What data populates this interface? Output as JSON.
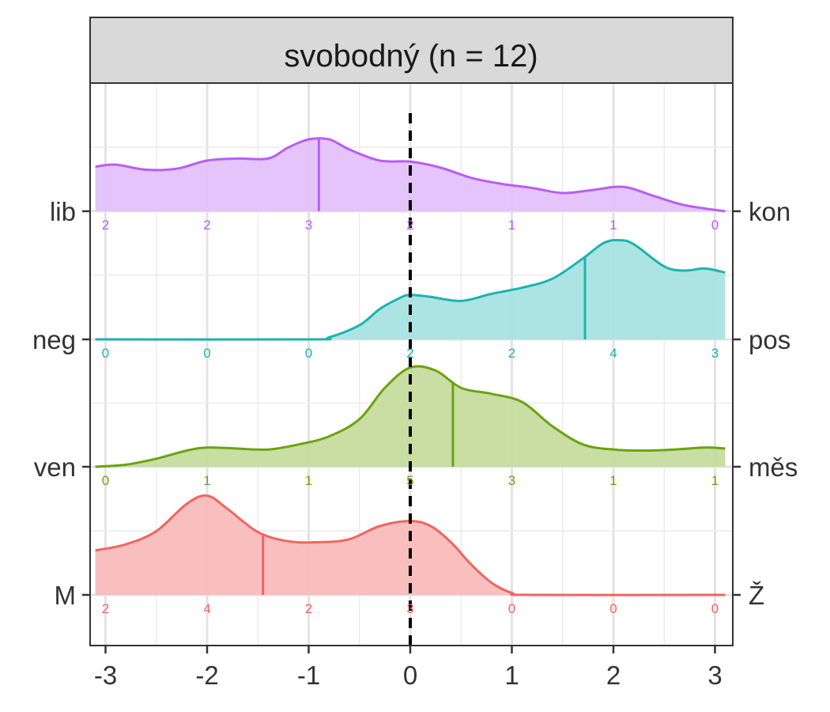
{
  "chart_data": {
    "type": "area",
    "title": "svobodný (n = 12)",
    "xlim": [
      -3.15,
      3.15
    ],
    "x_ticks": [
      -3,
      -2,
      -1,
      0,
      1,
      2,
      3
    ],
    "x_tick_labels": [
      "-3",
      "-2",
      "-1",
      "0",
      "1",
      "2",
      "3"
    ],
    "reference_line_x": 0,
    "grid": true,
    "count_positions": [
      -3,
      -2,
      -1,
      0,
      1,
      2,
      3
    ],
    "series": [
      {
        "left_label": "M",
        "right_label": "Ž",
        "color": "#F2645E",
        "fill": "#F8BABA",
        "mean": -1.45,
        "counts": [
          2,
          4,
          2,
          3,
          0,
          0,
          0
        ],
        "peak_height": 1.0,
        "density": [
          [
            -3.1,
            0.44
          ],
          [
            -2.8,
            0.5
          ],
          [
            -2.5,
            0.63
          ],
          [
            -2.2,
            0.9
          ],
          [
            -2.0,
            0.98
          ],
          [
            -1.8,
            0.85
          ],
          [
            -1.5,
            0.62
          ],
          [
            -1.2,
            0.53
          ],
          [
            -0.9,
            0.52
          ],
          [
            -0.6,
            0.55
          ],
          [
            -0.3,
            0.68
          ],
          [
            0.0,
            0.73
          ],
          [
            0.2,
            0.68
          ],
          [
            0.4,
            0.52
          ],
          [
            0.6,
            0.3
          ],
          [
            0.8,
            0.12
          ],
          [
            1.0,
            0.02
          ],
          [
            1.2,
            0.0
          ],
          [
            3.1,
            0.0
          ]
        ]
      },
      {
        "left_label": "ven",
        "right_label": "měs",
        "color": "#6AA40E",
        "fill": "#C3DB9B",
        "mean": 0.42,
        "counts": [
          0,
          1,
          1,
          5,
          3,
          1,
          1
        ],
        "peak_height": 1.0,
        "density": [
          [
            -3.1,
            0.0
          ],
          [
            -2.8,
            0.02
          ],
          [
            -2.5,
            0.08
          ],
          [
            -2.2,
            0.16
          ],
          [
            -2.0,
            0.19
          ],
          [
            -1.7,
            0.18
          ],
          [
            -1.4,
            0.17
          ],
          [
            -1.1,
            0.22
          ],
          [
            -0.8,
            0.3
          ],
          [
            -0.5,
            0.47
          ],
          [
            -0.25,
            0.78
          ],
          [
            0.0,
            0.98
          ],
          [
            0.25,
            0.95
          ],
          [
            0.5,
            0.78
          ],
          [
            0.8,
            0.72
          ],
          [
            1.1,
            0.64
          ],
          [
            1.4,
            0.4
          ],
          [
            1.7,
            0.22
          ],
          [
            2.0,
            0.17
          ],
          [
            2.3,
            0.16
          ],
          [
            2.6,
            0.17
          ],
          [
            2.9,
            0.19
          ],
          [
            3.1,
            0.18
          ]
        ]
      },
      {
        "left_label": "neg",
        "right_label": "pos",
        "color": "#1CB3B0",
        "fill": "#A4E2E1",
        "mean": 1.72,
        "counts": [
          0,
          0,
          0,
          2,
          2,
          4,
          3
        ],
        "peak_height": 1.0,
        "density": [
          [
            -3.1,
            0.0
          ],
          [
            -1.0,
            0.0
          ],
          [
            -0.8,
            0.02
          ],
          [
            -0.5,
            0.14
          ],
          [
            -0.3,
            0.3
          ],
          [
            -0.1,
            0.41
          ],
          [
            0.0,
            0.44
          ],
          [
            0.2,
            0.42
          ],
          [
            0.5,
            0.38
          ],
          [
            0.8,
            0.45
          ],
          [
            1.1,
            0.51
          ],
          [
            1.4,
            0.6
          ],
          [
            1.7,
            0.8
          ],
          [
            1.9,
            0.95
          ],
          [
            2.05,
            0.98
          ],
          [
            2.2,
            0.94
          ],
          [
            2.5,
            0.72
          ],
          [
            2.7,
            0.68
          ],
          [
            2.9,
            0.7
          ],
          [
            3.1,
            0.66
          ]
        ]
      },
      {
        "left_label": "lib",
        "right_label": "kon",
        "color": "#BA5CF5",
        "fill": "#E2BFFB",
        "mean": -0.9,
        "counts": [
          2,
          2,
          3,
          2,
          1,
          1,
          0
        ],
        "peak_height": 1.0,
        "density": [
          [
            -3.1,
            0.44
          ],
          [
            -2.9,
            0.46
          ],
          [
            -2.6,
            0.41
          ],
          [
            -2.3,
            0.42
          ],
          [
            -2.0,
            0.5
          ],
          [
            -1.7,
            0.52
          ],
          [
            -1.4,
            0.52
          ],
          [
            -1.2,
            0.63
          ],
          [
            -1.0,
            0.71
          ],
          [
            -0.8,
            0.71
          ],
          [
            -0.6,
            0.61
          ],
          [
            -0.3,
            0.5
          ],
          [
            0.0,
            0.49
          ],
          [
            0.3,
            0.43
          ],
          [
            0.6,
            0.33
          ],
          [
            0.9,
            0.27
          ],
          [
            1.2,
            0.23
          ],
          [
            1.5,
            0.18
          ],
          [
            1.8,
            0.21
          ],
          [
            2.1,
            0.24
          ],
          [
            2.4,
            0.15
          ],
          [
            2.7,
            0.06
          ],
          [
            3.1,
            0.0
          ]
        ]
      }
    ]
  }
}
